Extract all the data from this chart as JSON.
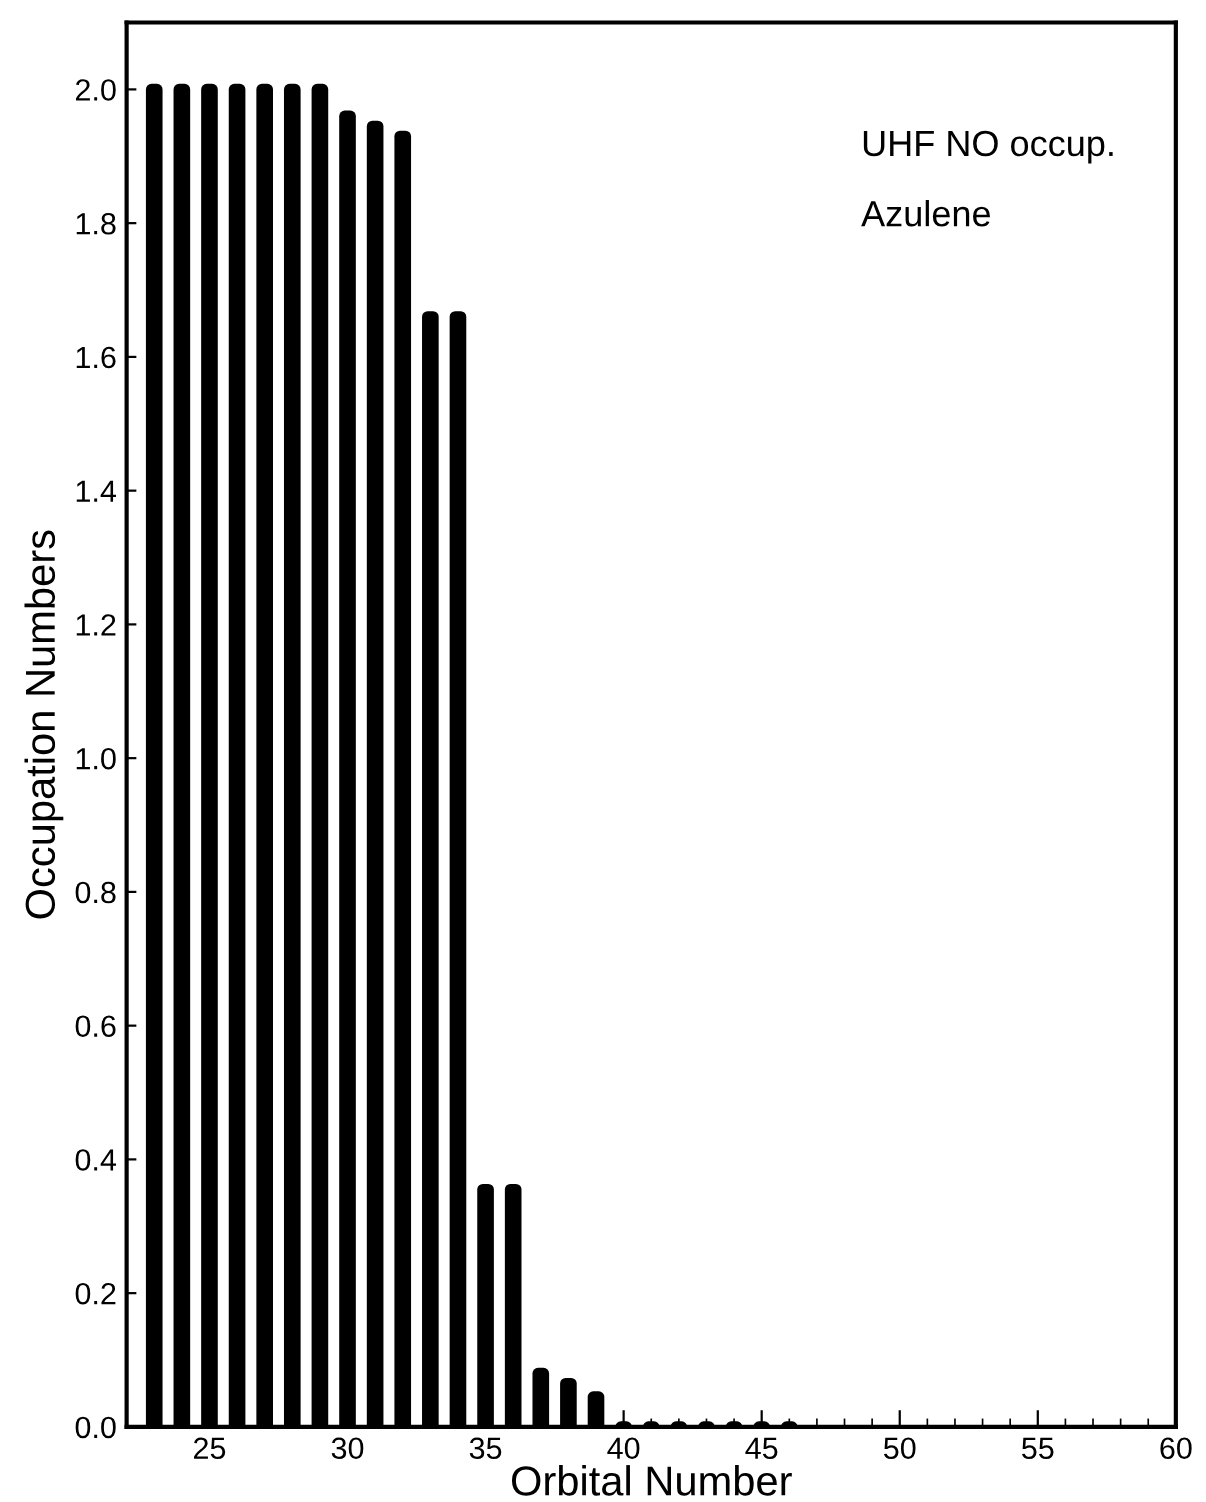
{
  "chart_data": {
    "type": "bar",
    "xlabel": "Orbital Number",
    "ylabel": "Occupation Numbers",
    "annotations": [
      "UHF NO occup.",
      "Azulene"
    ],
    "x": [
      23,
      24,
      25,
      26,
      27,
      28,
      29,
      30,
      31,
      32,
      33,
      34,
      35,
      36,
      37,
      38,
      39,
      40,
      41,
      42,
      43,
      44,
      45,
      46
    ],
    "series": [
      {
        "color": "#000000",
        "values": [
          2.0,
          2.0,
          2.0,
          2.0,
          2.0,
          2.0,
          2.0,
          1.96,
          1.945,
          1.93,
          1.66,
          1.66,
          0.355,
          0.355,
          0.08,
          0.065,
          0.045,
          0,
          0,
          0,
          0,
          0,
          0,
          0
        ]
      }
    ],
    "xlim": [
      22,
      60
    ],
    "xticks": [
      25,
      30,
      35,
      40,
      45,
      50,
      55,
      60
    ],
    "ylim": [
      0,
      2.1
    ],
    "yticks": [
      {
        "value": 0,
        "label": "0.0"
      },
      {
        "value": 0.2,
        "label": "0.2"
      },
      {
        "value": 0.4,
        "label": "0.4"
      },
      {
        "value": 0.6,
        "label": "0.6"
      },
      {
        "value": 0.8,
        "label": "0.8"
      },
      {
        "value": 1.0,
        "label": "1.0"
      },
      {
        "value": 1.2,
        "label": "1.2"
      },
      {
        "value": 1.4,
        "label": "1.4"
      },
      {
        "value": 1.6,
        "label": "1.6"
      },
      {
        "value": 1.8,
        "label": "1.8"
      },
      {
        "value": 2.0,
        "label": "2.0"
      }
    ],
    "grid": false,
    "legend": false
  }
}
